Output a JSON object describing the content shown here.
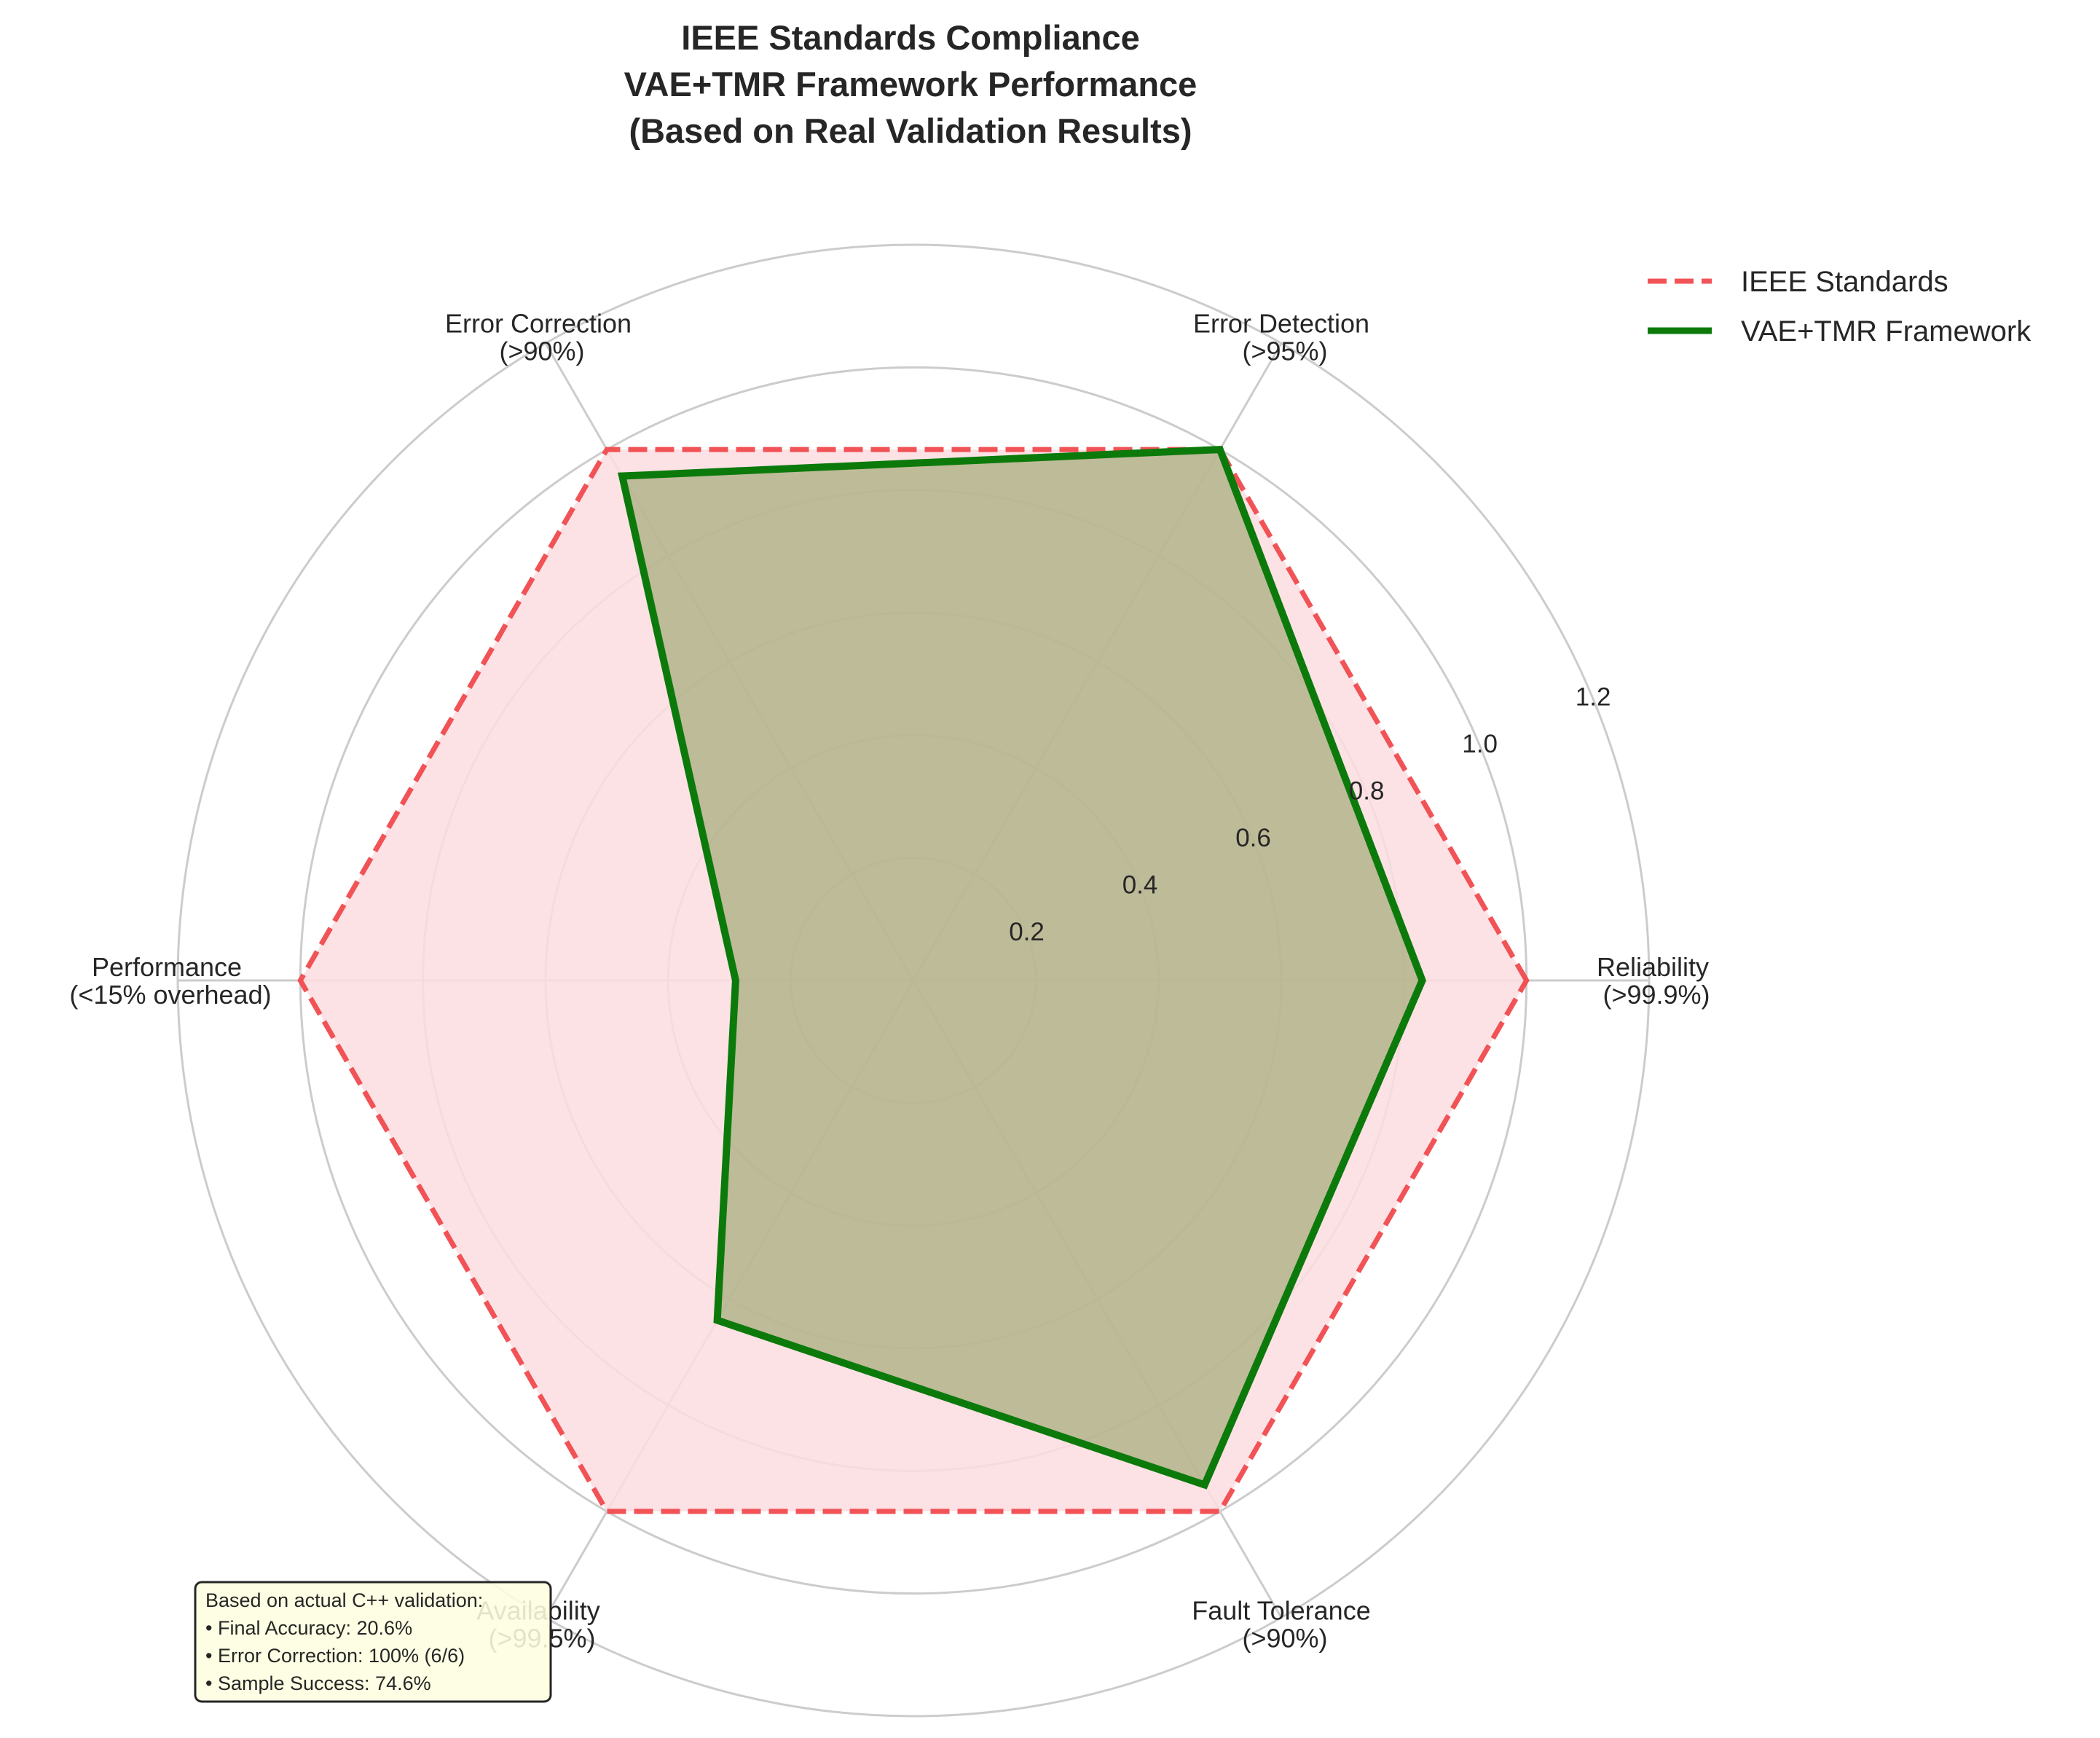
{
  "title_lines": [
    "IEEE Standards Compliance",
    "VAE+TMR Framework Performance",
    "(Based on Real Validation Results)"
  ],
  "chart_data": {
    "type": "radar",
    "categories": [
      [
        "Reliability",
        "(>99.9%)"
      ],
      [
        "Error Detection",
        "(>95%)"
      ],
      [
        "Error Correction",
        "(>90%)"
      ],
      [
        "Performance",
        "(<15% overhead)"
      ],
      [
        "Availability",
        "(>99.5%)"
      ],
      [
        "Fault Tolerance",
        "(>90%)"
      ]
    ],
    "series": [
      {
        "name": "IEEE Standards",
        "values": [
          1.0,
          1.0,
          1.0,
          1.0,
          1.0,
          1.0
        ],
        "color": "#f04a4e",
        "style": "dashed",
        "fill": "#fddde1"
      },
      {
        "name": "VAE+TMR Framework",
        "values": [
          0.83,
          1.0,
          0.95,
          0.29,
          0.64,
          0.95
        ],
        "color": "#0b7a0b",
        "style": "solid",
        "fill": "#8a9a5b"
      }
    ],
    "rlim": [
      0,
      1.2
    ],
    "rticks": [
      "0.2",
      "0.4",
      "0.6",
      "0.8",
      "1.0",
      "1.2"
    ],
    "grid": true,
    "legend_position": "top-right"
  },
  "annotation": {
    "lines": [
      "Based on actual C++ validation:",
      "• Final Accuracy: 20.6%",
      "• Error Correction: 100% (6/6)",
      "• Sample Success: 74.6%"
    ],
    "background": "#fefee0"
  }
}
